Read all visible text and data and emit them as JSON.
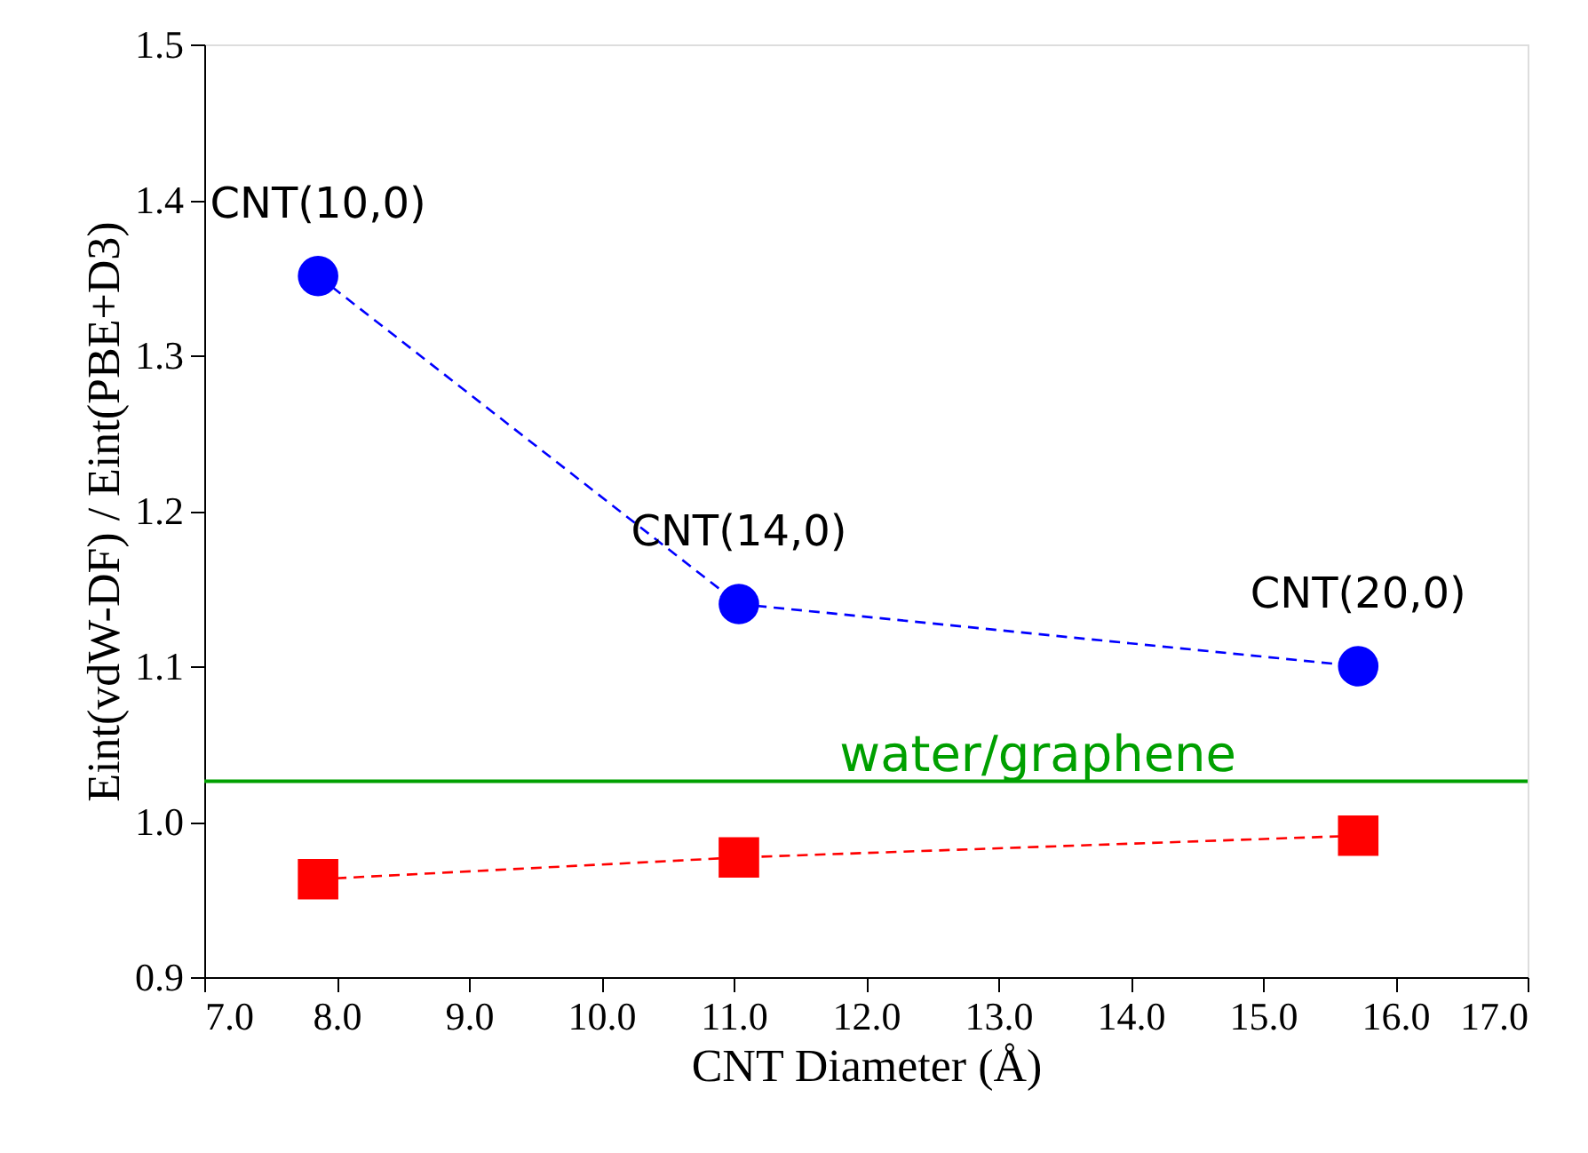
{
  "chart_data": {
    "type": "line",
    "xlabel": "CNT Diameter (Å)",
    "ylabel": "Eint(vdW-DF) / Eint(PBE+D3)",
    "xlim": [
      7.0,
      17.0
    ],
    "xticks": [
      {
        "value": 7,
        "label": "7.0"
      },
      {
        "value": 8,
        "label": "8.0"
      },
      {
        "value": 9,
        "label": "9.0"
      },
      {
        "value": 10,
        "label": "10.0"
      },
      {
        "value": 11,
        "label": "11.0"
      },
      {
        "value": 12,
        "label": "12.0"
      },
      {
        "value": 13,
        "label": "13.0"
      },
      {
        "value": 14,
        "label": "14.0"
      },
      {
        "value": 15,
        "label": "15.0"
      },
      {
        "value": 16,
        "label": "16.0"
      },
      {
        "value": 17,
        "label": "17.0"
      }
    ],
    "ylim": [
      0.9,
      1.5
    ],
    "yticks": [
      0.9,
      {
        "value": 1.0,
        "label": "1.0"
      },
      1.1,
      1.2,
      1.3,
      1.4,
      1.5
    ],
    "series": [
      {
        "color": "#0000ff",
        "marker": "circle",
        "line_style": "dashed",
        "x": [
          7.86,
          11.04,
          15.72
        ],
        "values": [
          1.351,
          1.14,
          1.1
        ]
      },
      {
        "color": "#ff0000",
        "marker": "square",
        "line_style": "dashed",
        "x": [
          7.86,
          11.04,
          15.72
        ],
        "values": [
          0.963,
          0.977,
          0.991
        ]
      }
    ],
    "ref_lines": [
      {
        "axis": "y",
        "value": 1.026,
        "label": "water/graphene",
        "color": "#00a000",
        "line_style": "solid"
      }
    ],
    "annotations": [
      {
        "text": "CNT(10,0)",
        "x": 7.86,
        "y": 1.351
      },
      {
        "text": "CNT(14,0)",
        "x": 11.04,
        "y": 1.14
      },
      {
        "text": "CNT(20,0)",
        "x": 15.72,
        "y": 1.1
      }
    ],
    "grid": false
  }
}
